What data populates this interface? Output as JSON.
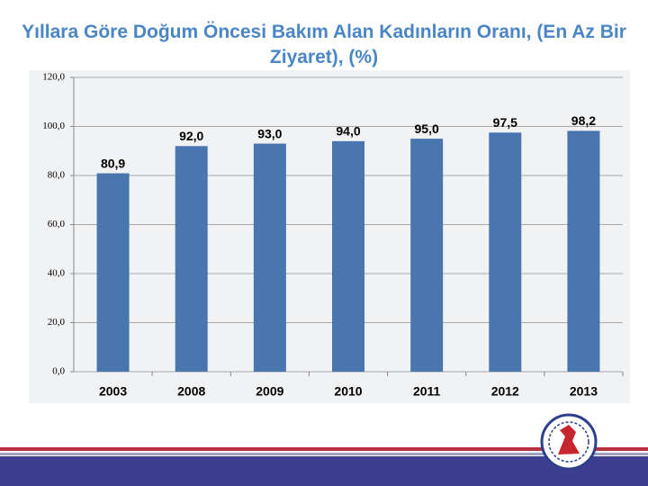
{
  "chart_data": {
    "type": "bar",
    "title": "Yıllara Göre Doğum Öncesi Bakım Alan Kadınların Oranı, (En Az Bir Ziyaret), (%)",
    "categories": [
      "2003",
      "2008",
      "2009",
      "2010",
      "2011",
      "2012",
      "2013"
    ],
    "values": [
      80.9,
      92.0,
      93.0,
      94.0,
      95.0,
      97.5,
      98.2
    ],
    "value_labels": [
      "80,9",
      "92,0",
      "93,0",
      "94,0",
      "95,0",
      "97,5",
      "98,2"
    ],
    "color": "#4a76b0",
    "ylim": [
      0,
      120
    ],
    "yticks": [
      {
        "value": 0,
        "label": "0,0"
      },
      {
        "value": 20,
        "label": "20,0"
      },
      {
        "value": 40,
        "label": "40,0"
      },
      {
        "value": 60,
        "label": "60,0"
      },
      {
        "value": 80,
        "label": "80,0"
      },
      {
        "value": 100,
        "label": "100,0"
      },
      {
        "value": 120,
        "label": "120,0"
      }
    ],
    "grid": true
  }
}
